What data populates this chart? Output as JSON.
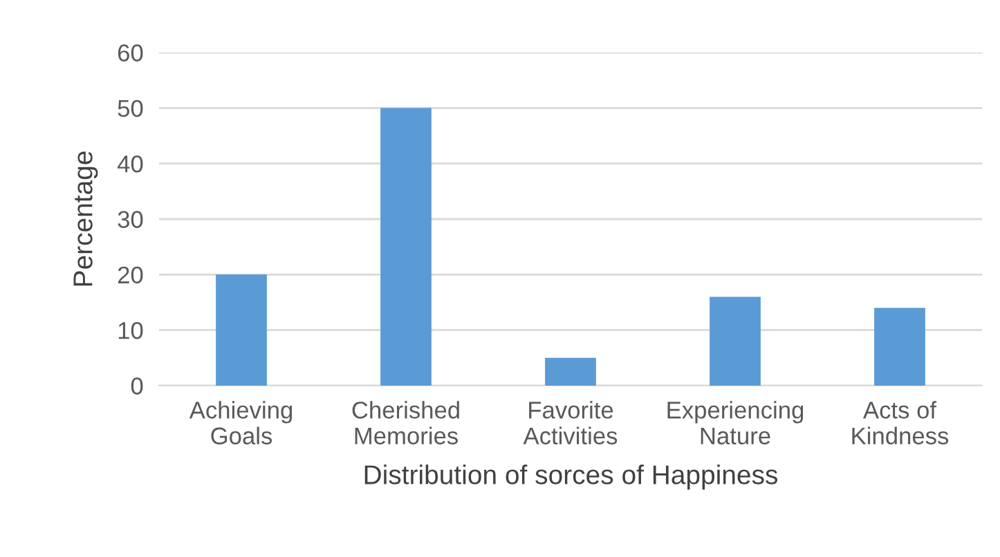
{
  "chart_data": {
    "type": "bar",
    "xlabel": "Distribution of sorces of Happiness",
    "ylabel": "Percentage",
    "categories": [
      "Achieving\nGoals",
      "Cherished\nMemories",
      "Favorite\nActivities",
      "Experiencing\nNature",
      "Acts of\nKindness"
    ],
    "values": [
      20,
      50,
      5,
      16,
      14
    ],
    "color": "#5b9bd5",
    "ylim": [
      0,
      60
    ],
    "yticks": [
      0,
      10,
      20,
      30,
      40,
      50,
      60
    ],
    "grid": "y",
    "legend": false
  }
}
